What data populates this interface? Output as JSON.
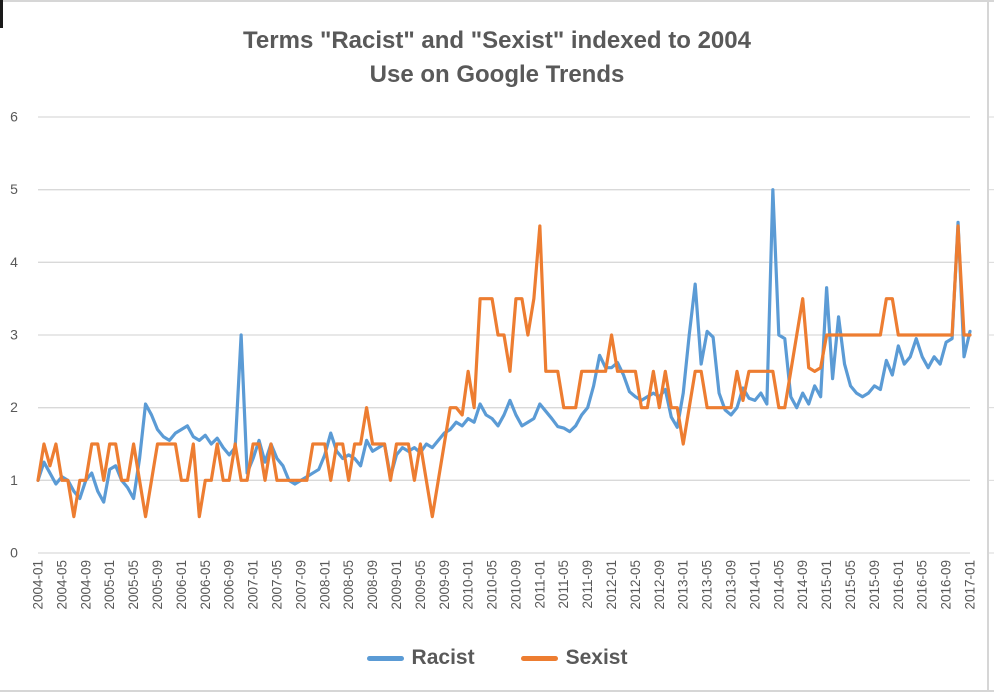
{
  "title": {
    "line1": "Terms \"Racist\" and \"Sexist\" indexed to 2004",
    "line2": "Use on Google Trends"
  },
  "colors": {
    "racist": "#5B9BD5",
    "sexist": "#ED7D31",
    "gridline": "#d9d9d9",
    "axis_text": "#595959",
    "title_text": "#595959"
  },
  "legend": {
    "items": [
      {
        "label": "Racist",
        "color": "#5B9BD5"
      },
      {
        "label": "Sexist",
        "color": "#ED7D31"
      }
    ]
  },
  "chart_data": {
    "type": "line",
    "title": "Terms \"Racist\" and \"Sexist\" indexed to 2004 Use on Google Trends",
    "xlabel": "",
    "ylabel": "",
    "ylim": [
      0,
      6
    ],
    "y_ticks": [
      "0",
      "1",
      "2",
      "3",
      "4",
      "5",
      "6"
    ],
    "grid": true,
    "legend_position": "bottom",
    "x_start": "2004-01",
    "x_end": "2017-01",
    "x_interval": "monthly",
    "x_tick_step_months": 4,
    "x_tick_labels": [
      "2004-01",
      "2004-05",
      "2004-09",
      "2005-01",
      "2005-05",
      "2005-09",
      "2006-01",
      "2006-05",
      "2006-09",
      "2007-01",
      "2007-05",
      "2007-09",
      "2008-01",
      "2008-05",
      "2008-09",
      "2009-01",
      "2009-05",
      "2009-09",
      "2010-01",
      "2010-05",
      "2010-09",
      "2011-01",
      "2011-05",
      "2011-09",
      "2012-01",
      "2012-05",
      "2012-09",
      "2013-01",
      "2013-05",
      "2013-09",
      "2014-01",
      "2014-05",
      "2014-09",
      "2015-01",
      "2015-05",
      "2015-09",
      "2016-01",
      "2016-05",
      "2016-09",
      "2017-01"
    ],
    "series": [
      {
        "name": "Racist",
        "color": "#5B9BD5",
        "values": [
          1.0,
          1.25,
          1.1,
          0.95,
          1.05,
          1.0,
          0.85,
          0.75,
          1.0,
          1.1,
          0.85,
          0.7,
          1.15,
          1.2,
          1.0,
          0.9,
          0.75,
          1.3,
          2.05,
          1.9,
          1.7,
          1.6,
          1.55,
          1.65,
          1.7,
          1.75,
          1.6,
          1.55,
          1.62,
          1.5,
          1.58,
          1.45,
          1.35,
          1.45,
          3.0,
          1.1,
          1.3,
          1.55,
          1.25,
          1.5,
          1.3,
          1.2,
          1.0,
          0.95,
          1.0,
          1.05,
          1.1,
          1.15,
          1.35,
          1.65,
          1.4,
          1.3,
          1.35,
          1.3,
          1.2,
          1.55,
          1.4,
          1.45,
          1.5,
          1.05,
          1.35,
          1.45,
          1.4,
          1.45,
          1.38,
          1.5,
          1.45,
          1.55,
          1.65,
          1.7,
          1.8,
          1.75,
          1.85,
          1.8,
          2.05,
          1.9,
          1.85,
          1.75,
          1.9,
          2.1,
          1.9,
          1.75,
          1.8,
          1.85,
          2.05,
          1.95,
          1.85,
          1.74,
          1.72,
          1.67,
          1.75,
          1.9,
          2.0,
          2.3,
          2.72,
          2.55,
          2.55,
          2.62,
          2.45,
          2.22,
          2.15,
          2.1,
          2.15,
          2.2,
          2.15,
          2.25,
          1.87,
          1.73,
          2.2,
          3.0,
          3.7,
          2.6,
          3.05,
          2.97,
          2.2,
          1.97,
          1.9,
          2.0,
          2.27,
          2.13,
          2.1,
          2.2,
          2.05,
          5.0,
          3.0,
          2.95,
          2.15,
          2.0,
          2.2,
          2.05,
          2.3,
          2.15,
          3.65,
          2.4,
          3.25,
          2.6,
          2.3,
          2.2,
          2.15,
          2.2,
          2.3,
          2.25,
          2.65,
          2.45,
          2.85,
          2.6,
          2.7,
          2.95,
          2.7,
          2.55,
          2.7,
          2.6,
          2.9,
          2.95,
          4.55,
          2.7,
          3.05
        ]
      },
      {
        "name": "Sexist",
        "color": "#ED7D31",
        "values": [
          1.0,
          1.5,
          1.2,
          1.5,
          1.0,
          1.0,
          0.5,
          1.0,
          1.0,
          1.5,
          1.5,
          1.0,
          1.5,
          1.5,
          1.0,
          1.0,
          1.5,
          1.0,
          0.5,
          1.0,
          1.5,
          1.5,
          1.5,
          1.5,
          1.0,
          1.0,
          1.5,
          0.5,
          1.0,
          1.0,
          1.5,
          1.0,
          1.0,
          1.5,
          1.0,
          1.0,
          1.5,
          1.5,
          1.0,
          1.5,
          1.0,
          1.0,
          1.0,
          1.0,
          1.0,
          1.0,
          1.5,
          1.5,
          1.5,
          1.0,
          1.5,
          1.5,
          1.0,
          1.5,
          1.5,
          2.0,
          1.5,
          1.5,
          1.5,
          1.0,
          1.5,
          1.5,
          1.5,
          1.0,
          1.5,
          1.0,
          0.5,
          1.0,
          1.5,
          2.0,
          2.0,
          1.9,
          2.5,
          2.0,
          3.5,
          3.5,
          3.5,
          3.0,
          3.0,
          2.5,
          3.5,
          3.5,
          3.0,
          3.5,
          4.5,
          2.5,
          2.5,
          2.5,
          2.0,
          2.0,
          2.0,
          2.5,
          2.5,
          2.5,
          2.5,
          2.5,
          3.0,
          2.5,
          2.5,
          2.5,
          2.5,
          2.0,
          2.0,
          2.5,
          2.0,
          2.5,
          2.0,
          2.0,
          1.5,
          2.0,
          2.5,
          2.5,
          2.0,
          2.0,
          2.0,
          2.0,
          2.0,
          2.5,
          2.1,
          2.5,
          2.5,
          2.5,
          2.5,
          2.5,
          2.0,
          2.0,
          2.5,
          3.0,
          3.5,
          2.55,
          2.5,
          2.55,
          3.0,
          3.0,
          3.0,
          3.0,
          3.0,
          3.0,
          3.0,
          3.0,
          3.0,
          3.0,
          3.5,
          3.5,
          3.0,
          3.0,
          3.0,
          3.0,
          3.0,
          3.0,
          3.0,
          3.0,
          3.0,
          3.0,
          4.5,
          3.0,
          3.0
        ]
      }
    ]
  }
}
